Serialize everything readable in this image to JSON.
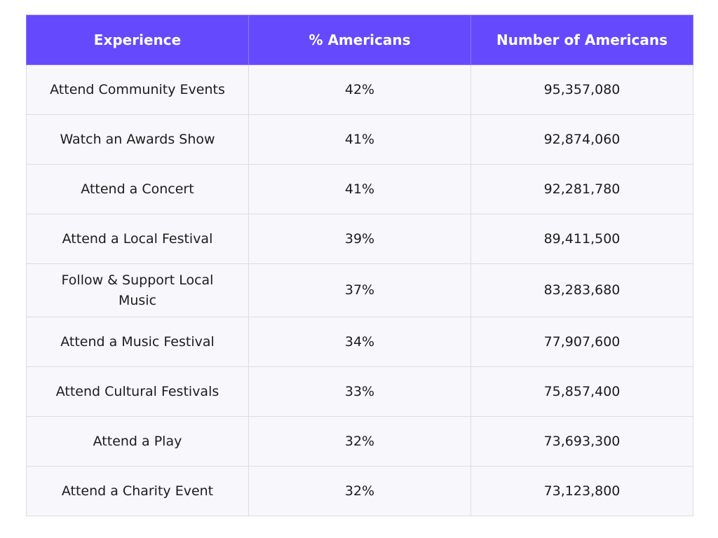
{
  "table": {
    "headers": [
      "Experience",
      "% Americans",
      "Number of Americans"
    ],
    "rows": [
      [
        "Attend Community Events",
        "42%",
        "95,357,080"
      ],
      [
        "Watch an Awards Show",
        "41%",
        "92,874,060"
      ],
      [
        "Attend a Concert",
        "41%",
        "92,281,780"
      ],
      [
        "Attend a Local Festival",
        "39%",
        "89,411,500"
      ],
      [
        "Follow & Support Local Music",
        "37%",
        "83,283,680"
      ],
      [
        "Attend a Music Festival",
        "34%",
        "77,907,600"
      ],
      [
        "Attend Cultural Festivals",
        "33%",
        "75,857,400"
      ],
      [
        "Attend a Play",
        "32%",
        "73,693,300"
      ],
      [
        "Attend a Charity Event",
        "32%",
        "73,123,800"
      ]
    ]
  }
}
